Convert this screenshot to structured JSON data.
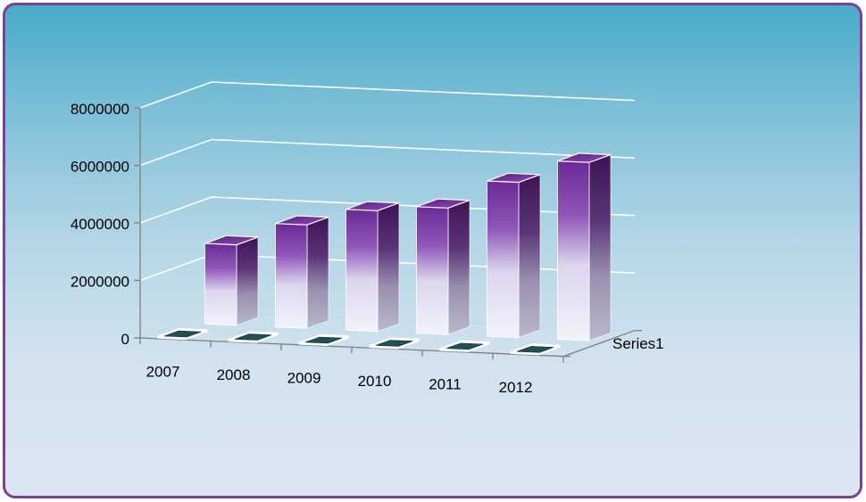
{
  "chart_data": {
    "type": "bar",
    "subtype": "3d-column",
    "categories": [
      "2007",
      "2008",
      "2009",
      "2010",
      "2011",
      "2012"
    ],
    "series": [
      {
        "name": "Series1",
        "values": [
          2800000,
          3600000,
          4200000,
          4400000,
          5400000,
          6200000
        ]
      }
    ],
    "yticks": [
      "0",
      "2000000",
      "4000000",
      "6000000",
      "8000000"
    ],
    "ylim": [
      0,
      8000000
    ],
    "grid": true,
    "legend": "none",
    "depth_axis_label": "Series1",
    "colors": {
      "bar_top": "#6a2a96",
      "bar_mid": "#b183d0",
      "bar_bottom": "#eef0f9",
      "bar_side_dark": "#3c1456",
      "floor_marker": "#1f4f57",
      "gridline": "#ffffff",
      "frame_border": "#7b3f9e",
      "background_top": "#4aabc9",
      "background_bottom": "#dde7f3"
    }
  }
}
